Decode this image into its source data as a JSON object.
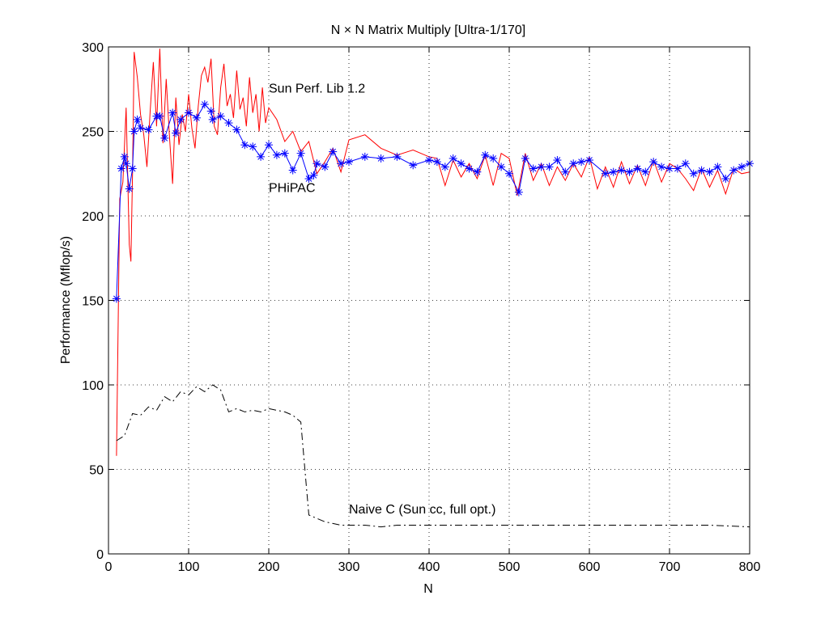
{
  "chart_data": {
    "type": "line",
    "title": "N × N Matrix Multiply [Ultra-1/170]",
    "xlabel": "N",
    "ylabel": "Performance (Mflop/s)",
    "xlim": [
      0,
      800
    ],
    "ylim": [
      0,
      300
    ],
    "xticks": [
      0,
      100,
      200,
      300,
      400,
      500,
      600,
      700,
      800
    ],
    "yticks": [
      0,
      50,
      100,
      150,
      200,
      250,
      300
    ],
    "grid": true,
    "legend": "none",
    "annotations": [
      {
        "text": "Sun Perf. Lib 1.2",
        "x": 200,
        "y": 273
      },
      {
        "text": "PHiPAC",
        "x": 200,
        "y": 214
      },
      {
        "text": "Naive C (Sun cc, full opt.)",
        "x": 300,
        "y": 24
      }
    ],
    "series": [
      {
        "name": "Sun Perf. Lib 1.2",
        "color": "#ff0000",
        "style": "solid",
        "marker": "none",
        "x": [
          10,
          14,
          18,
          22,
          26,
          28,
          30,
          32,
          36,
          40,
          44,
          48,
          52,
          56,
          60,
          64,
          68,
          72,
          76,
          80,
          84,
          88,
          92,
          96,
          100,
          104,
          108,
          112,
          116,
          120,
          124,
          128,
          132,
          136,
          140,
          144,
          148,
          152,
          156,
          160,
          164,
          168,
          172,
          176,
          180,
          184,
          188,
          192,
          196,
          200,
          210,
          220,
          230,
          240,
          250,
          260,
          270,
          280,
          290,
          300,
          320,
          340,
          360,
          380,
          400,
          410,
          420,
          430,
          440,
          450,
          460,
          470,
          480,
          490,
          500,
          510,
          520,
          530,
          540,
          550,
          560,
          570,
          580,
          590,
          600,
          610,
          620,
          630,
          640,
          650,
          660,
          670,
          680,
          690,
          700,
          710,
          720,
          730,
          740,
          750,
          760,
          770,
          780,
          790,
          800
        ],
        "y": [
          58,
          210,
          220,
          264,
          183,
          173,
          225,
          297,
          282,
          260,
          248,
          229,
          262,
          291,
          253,
          299,
          243,
          281,
          248,
          219,
          270,
          242,
          260,
          250,
          272,
          252,
          240,
          265,
          283,
          288,
          279,
          293,
          253,
          248,
          276,
          290,
          265,
          272,
          258,
          286,
          263,
          270,
          253,
          282,
          261,
          272,
          250,
          276,
          255,
          264,
          257,
          244,
          250,
          238,
          244,
          225,
          232,
          240,
          226,
          245,
          248,
          240,
          236,
          239,
          235,
          234,
          218,
          233,
          223,
          231,
          222,
          236,
          218,
          237,
          234,
          212,
          237,
          221,
          231,
          218,
          229,
          221,
          231,
          223,
          235,
          216,
          229,
          217,
          232,
          219,
          230,
          218,
          233,
          220,
          231,
          228,
          222,
          215,
          228,
          217,
          227,
          213,
          228,
          225,
          226
        ]
      },
      {
        "name": "PHiPAC",
        "color": "#0000ff",
        "style": "solid",
        "marker": "asterisk",
        "x": [
          10,
          16,
          20,
          22,
          26,
          30,
          32,
          36,
          40,
          50,
          60,
          64,
          70,
          80,
          84,
          90,
          100,
          110,
          120,
          128,
          130,
          140,
          150,
          160,
          170,
          180,
          190,
          200,
          210,
          220,
          230,
          240,
          250,
          256,
          260,
          270,
          280,
          290,
          300,
          320,
          340,
          360,
          380,
          400,
          410,
          420,
          430,
          440,
          450,
          460,
          470,
          480,
          490,
          500,
          512,
          520,
          530,
          540,
          550,
          560,
          570,
          580,
          590,
          600,
          620,
          630,
          640,
          650,
          660,
          670,
          680,
          690,
          700,
          710,
          720,
          730,
          740,
          750,
          760,
          770,
          780,
          790,
          800
        ],
        "y": [
          151,
          228,
          235,
          231,
          216,
          228,
          250,
          257,
          252,
          251,
          259,
          259,
          246,
          261,
          249,
          257,
          261,
          258,
          266,
          262,
          257,
          259,
          255,
          251,
          242,
          241,
          235,
          242,
          236,
          237,
          227,
          237,
          222,
          224,
          231,
          229,
          238,
          231,
          232,
          235,
          234,
          235,
          230,
          233,
          232,
          229,
          234,
          231,
          228,
          226,
          236,
          234,
          229,
          225,
          214,
          234,
          228,
          229,
          229,
          233,
          226,
          231,
          232,
          233,
          225,
          226,
          227,
          226,
          228,
          226,
          232,
          229,
          228,
          228,
          231,
          225,
          227,
          226,
          229,
          222,
          227,
          229,
          231
        ]
      },
      {
        "name": "Naive C (Sun cc, full opt.)",
        "color": "#000000",
        "style": "dashdot",
        "marker": "none",
        "x": [
          10,
          20,
          30,
          40,
          50,
          60,
          70,
          80,
          90,
          100,
          110,
          120,
          130,
          140,
          150,
          160,
          170,
          180,
          190,
          200,
          210,
          220,
          230,
          240,
          245,
          250,
          260,
          270,
          280,
          290,
          300,
          320,
          340,
          360,
          380,
          400,
          450,
          500,
          550,
          600,
          650,
          700,
          750,
          800
        ],
        "y": [
          67,
          70,
          83,
          82,
          87,
          85,
          93,
          90,
          96,
          94,
          99,
          96,
          100,
          97,
          84,
          86,
          84,
          85,
          84,
          86,
          85,
          84,
          82,
          78,
          50,
          23,
          21,
          19,
          18,
          17,
          17,
          17,
          16,
          17,
          17,
          17,
          17,
          17,
          17,
          17,
          17,
          17,
          17,
          16
        ]
      }
    ]
  }
}
